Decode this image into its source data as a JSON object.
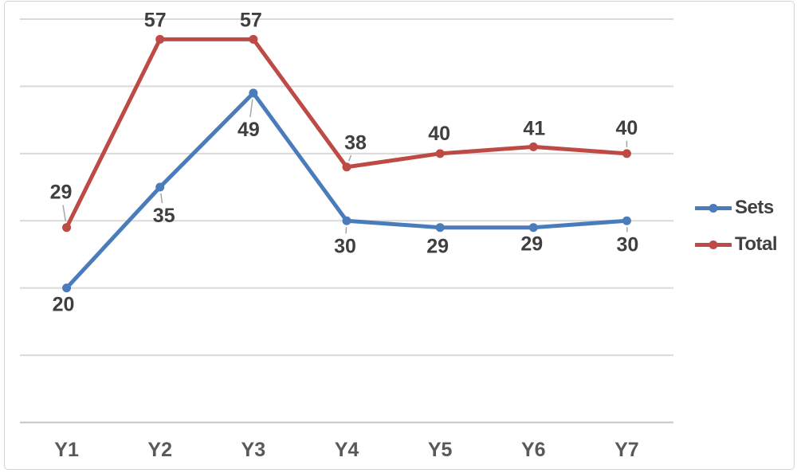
{
  "chart_data": {
    "type": "line",
    "title": "",
    "xlabel": "",
    "ylabel": "",
    "categories": [
      "Y1",
      "Y2",
      "Y3",
      "Y4",
      "Y5",
      "Y6",
      "Y7"
    ],
    "series": [
      {
        "name": "Sets",
        "color": "#4A7CBC",
        "values": [
          20,
          35,
          49,
          30,
          29,
          29,
          30
        ],
        "label_offsets": [
          [
            -4,
            21
          ],
          [
            5,
            36
          ],
          [
            -6,
            46
          ],
          [
            -2,
            32
          ],
          [
            -3,
            24
          ],
          [
            -2,
            21
          ],
          [
            1,
            30
          ]
        ],
        "label_leaders": [
          false,
          true,
          true,
          true,
          false,
          false,
          true
        ]
      },
      {
        "name": "Total",
        "color": "#BE4A46",
        "values": [
          29,
          57,
          57,
          38,
          40,
          41,
          40
        ],
        "label_offsets": [
          [
            -7,
            -44
          ],
          [
            -6,
            -24
          ],
          [
            -3,
            -24
          ],
          [
            11,
            -30
          ],
          [
            -1,
            -25
          ],
          [
            1,
            -23
          ],
          [
            0,
            -32
          ]
        ],
        "label_leaders": [
          true,
          false,
          false,
          true,
          false,
          false,
          true
        ]
      }
    ],
    "ylim": [
      0,
      60
    ],
    "y_major_unit": 10,
    "grid": true,
    "y_axis_tick_labels_visible": false,
    "legend_position": "right",
    "data_labels_visible": true
  },
  "colors": {
    "background": "#FFFFFF",
    "gridline": "#DADADA",
    "axis_line": "#C6C6C6",
    "leader_line": "#A6A6A6",
    "data_label_text": "#3F3F3F",
    "axis_label_text": "#595959",
    "legend_text": "#404040",
    "frame_border": "#D4D4D4"
  }
}
